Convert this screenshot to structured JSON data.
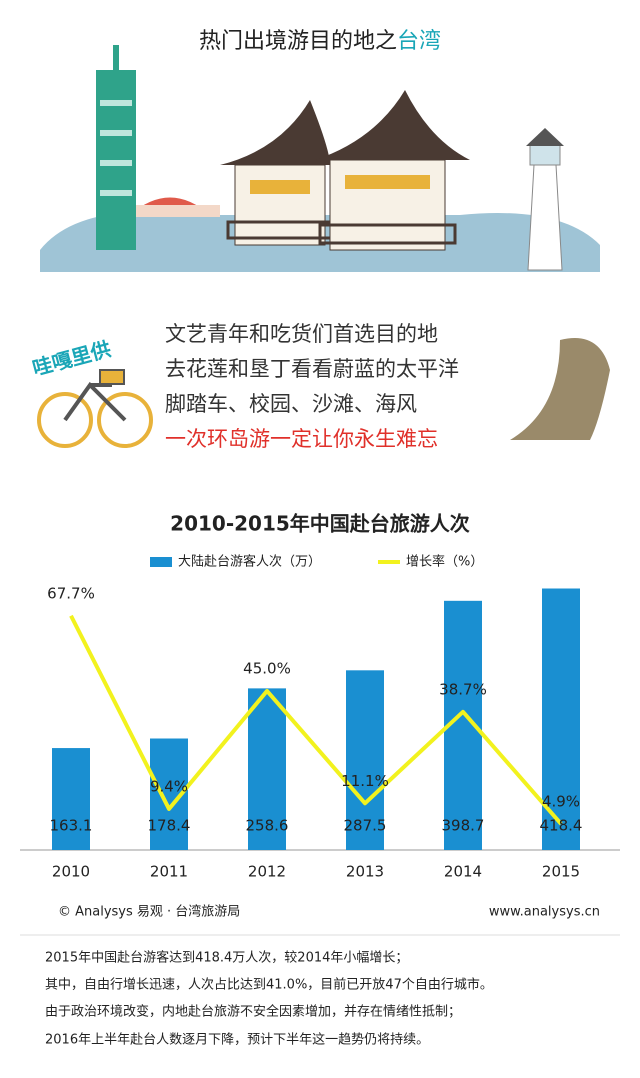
{
  "header": {
    "title": [
      "热门出境游目的地之",
      "台湾"
    ]
  },
  "intro": {
    "sign": "哇嘎里供",
    "lines": [
      "文艺青年和吃货们首选目的地",
      "去花莲和垦丁看看蔚蓝的太平洋",
      "脚踏车、校园、沙滩、海风",
      "一次环岛游一定让你永生难忘"
    ]
  },
  "chart_data": {
    "type": "bar",
    "title": "2010-2015年中国赴台旅游人次",
    "categories": [
      "2010",
      "2011",
      "2012",
      "2013",
      "2014",
      "2015"
    ],
    "series": [
      {
        "name": "大陆赴台游客人次（万）",
        "color": "#1a8fd1",
        "values": [
          163.1,
          178.4,
          258.6,
          287.5,
          398.7,
          418.4
        ]
      },
      {
        "name": "增长率（%）",
        "color": "#f2f21e",
        "type": "line",
        "axis": "y2",
        "values": [
          67.7,
          9.4,
          45.0,
          11.1,
          38.7,
          4.9
        ],
        "value_labels": [
          "67.7%",
          "9.4%",
          "45.0%",
          "11.1%",
          "38.7%",
          "4.9%"
        ]
      }
    ],
    "ylim": [
      0,
      440
    ],
    "y2lim": [
      -3,
      80
    ],
    "grid": false,
    "legend": "top"
  },
  "source": {
    "left": "© Analysys 易观 · 台湾旅游局",
    "right": "www.analysys.cn"
  },
  "notes": [
    "2015年中国赴台游客达到418.4万人次，较2014年小幅增长；",
    "其中，自由行增长迅速，人次占比达到41.0%，目前已开放47个自由行城市。",
    "由于政治环境改变，内地赴台旅游不安全因素增加，并存在情绪性抵制；",
    "2016年上半年赴台人数逐月下降，预计下半年这一趋势仍将持续。"
  ]
}
